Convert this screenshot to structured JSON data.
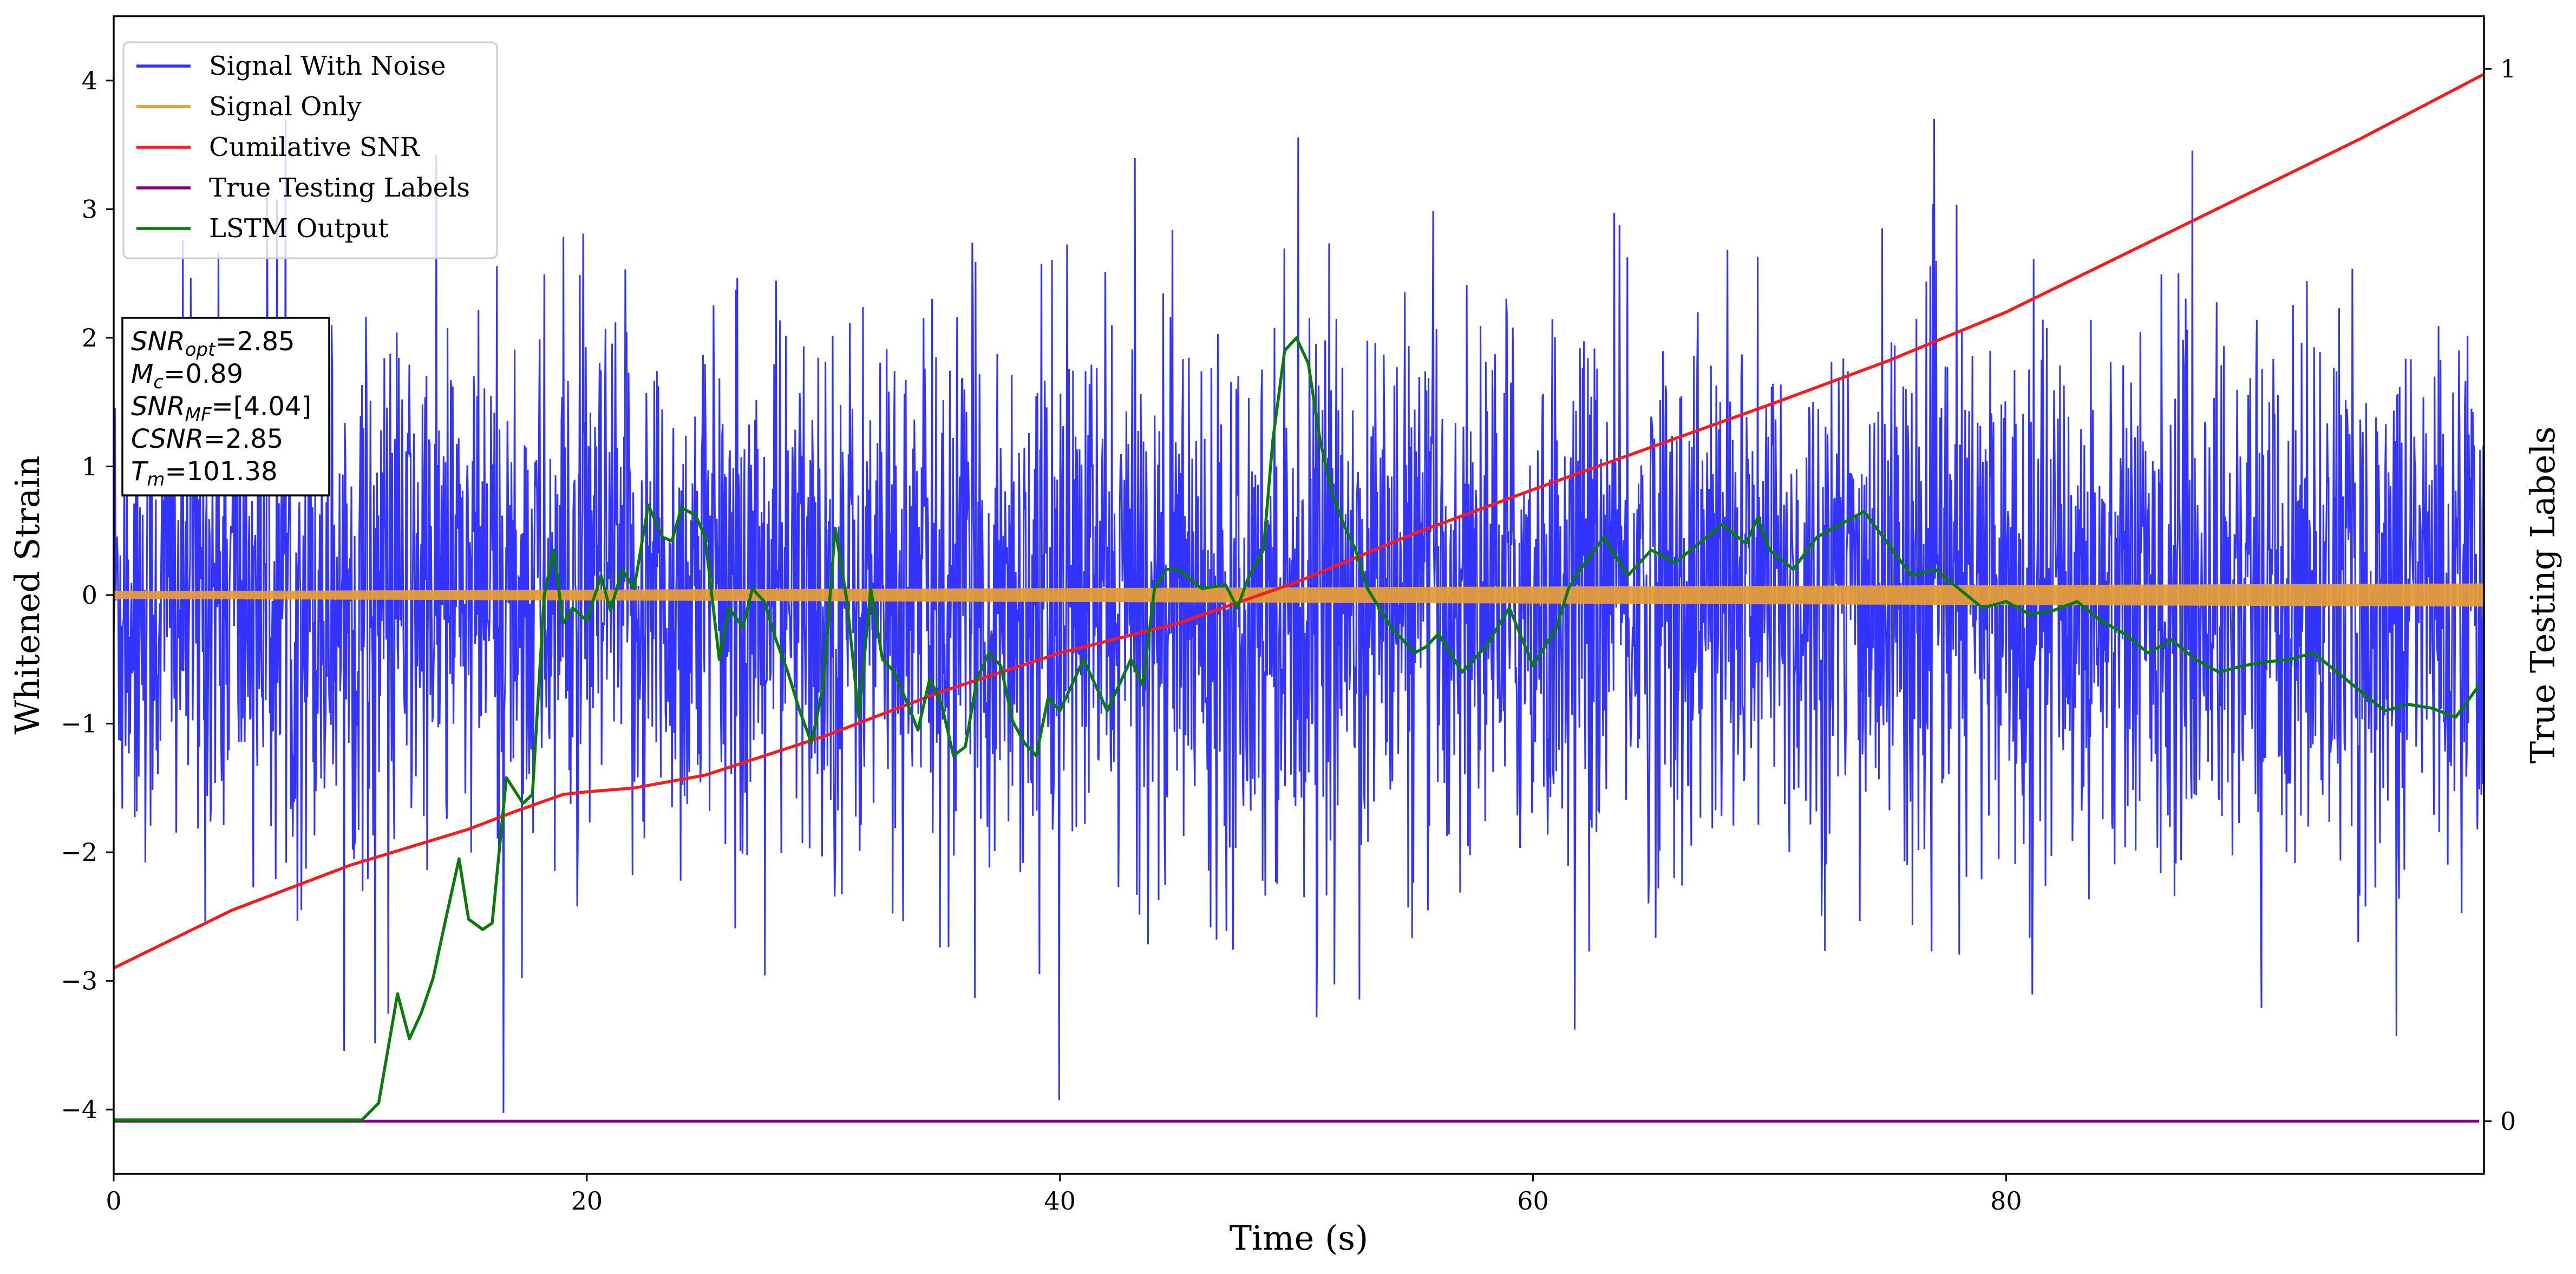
{
  "chart_data": {
    "type": "line",
    "xlabel": "Time (s)",
    "ylabel": "Whitened Strain",
    "y2label": "True Testing Labels",
    "xlim": [
      0,
      100.2
    ],
    "ylim": [
      -4.5,
      4.5
    ],
    "y2lim": [
      -0.05,
      1.05
    ],
    "xticks": [
      0,
      20,
      40,
      60,
      80
    ],
    "yticks": [
      -4,
      -3,
      -2,
      -1,
      0,
      1,
      2,
      3,
      4
    ],
    "y2ticks": [
      0,
      1
    ],
    "grid": false,
    "legend_position": "top-left",
    "info_box": {
      "lines": [
        {
          "main": "SNR",
          "sub": "opt",
          "value": "=2.85"
        },
        {
          "main": "M",
          "sub": "c",
          "value": "=0.89"
        },
        {
          "main": "SNR",
          "sub": "MF",
          "value": "=[4.04]"
        },
        {
          "main": "CSNR",
          "sub": "",
          "value": "=2.85"
        },
        {
          "main": "T",
          "sub": "m",
          "value": "=101.38"
        }
      ]
    },
    "series": [
      {
        "name": "Signal With Noise",
        "color": "#3333ff",
        "axis": "left",
        "kind": "noise",
        "envelope": [
          [
            0,
            3.3
          ],
          [
            100,
            3.3
          ]
        ],
        "typical_abs": 1.9,
        "x_range": [
          0,
          100.2
        ]
      },
      {
        "name": "Signal Only",
        "color": "#e59c39",
        "axis": "left",
        "kind": "band",
        "center": 0,
        "halfwidth_start": 0.03,
        "halfwidth_end": 0.09,
        "x_range": [
          0,
          100.2
        ]
      },
      {
        "name": "Cumilative SNR",
        "color": "#ff1a1a",
        "axis": "left",
        "x": [
          0,
          5,
          10,
          15,
          17,
          19,
          20,
          22,
          25,
          30,
          35,
          40,
          45,
          50,
          55,
          60,
          65,
          70,
          75,
          80,
          85,
          90,
          95,
          100.2
        ],
        "values": [
          -2.9,
          -2.45,
          -2.1,
          -1.82,
          -1.68,
          -1.55,
          -1.53,
          -1.5,
          -1.4,
          -1.1,
          -0.75,
          -0.45,
          -0.22,
          0.1,
          0.48,
          0.82,
          1.15,
          1.48,
          1.82,
          2.2,
          2.65,
          3.1,
          3.55,
          4.05
        ]
      },
      {
        "name": "True Testing Labels",
        "color": "#800080",
        "axis": "right",
        "x": [
          0,
          100
        ],
        "values": [
          0,
          0
        ]
      },
      {
        "name": "LSTM Output",
        "color": "#0a7a0a",
        "axis": "left",
        "x": [
          0,
          10.5,
          11.2,
          12.0,
          12.5,
          13.0,
          13.5,
          14.0,
          14.6,
          15.0,
          15.6,
          16.0,
          16.6,
          17.3,
          17.7,
          18.2,
          18.6,
          19.0,
          19.4,
          20.0,
          20.6,
          21.0,
          21.5,
          22.0,
          22.6,
          23.2,
          23.6,
          24.0,
          24.6,
          25.0,
          25.6,
          26.0,
          26.6,
          27.0,
          27.5,
          28.0,
          28.5,
          29.0,
          29.5,
          30.0,
          30.5,
          31.0,
          31.5,
          32.0,
          32.5,
          33.0,
          33.5,
          34.0,
          34.5,
          35.0,
          35.5,
          36.0,
          36.5,
          37.0,
          37.5,
          38.0,
          38.5,
          39.0,
          39.5,
          40.0,
          41.0,
          42.0,
          43.0,
          43.5,
          44.0,
          44.5,
          45.0,
          46.0,
          47.0,
          47.5,
          48.0,
          48.6,
          49.0,
          49.5,
          50.0,
          50.5,
          51.0,
          51.5,
          52.0,
          52.5,
          53.0,
          54.0,
          55.0,
          55.5,
          56.0,
          57.0,
          58.0,
          59.0,
          60.0,
          61.0,
          61.5,
          62.0,
          63.0,
          64.0,
          65.0,
          66.0,
          67.0,
          68.0,
          69.0,
          69.5,
          70.0,
          71.0,
          72.0,
          73.0,
          74.0,
          75.0,
          76.0,
          77.0,
          78.0,
          79.0,
          80.0,
          81.0,
          82.0,
          83.0,
          84.0,
          85.0,
          86.0,
          87.0,
          88.0,
          89.0,
          90.0,
          91.0,
          92.0,
          93.0,
          94.0,
          95.0,
          96.0,
          97.0,
          98.0,
          99.0,
          100.0
        ],
        "values": [
          -4.08,
          -4.08,
          -3.95,
          -3.1,
          -3.45,
          -3.25,
          -2.98,
          -2.55,
          -2.05,
          -2.52,
          -2.6,
          -2.55,
          -1.42,
          -1.62,
          -1.55,
          0.0,
          0.35,
          -0.22,
          -0.1,
          -0.2,
          0.15,
          -0.12,
          0.2,
          0.05,
          0.7,
          0.45,
          0.42,
          0.68,
          0.62,
          0.45,
          -0.5,
          -0.1,
          -0.25,
          0.05,
          -0.05,
          -0.35,
          -0.6,
          -0.9,
          -1.15,
          -0.7,
          0.52,
          -0.05,
          -0.95,
          0.05,
          -0.5,
          -0.6,
          -0.82,
          -1.05,
          -0.65,
          -0.85,
          -1.25,
          -1.18,
          -0.65,
          -0.45,
          -0.55,
          -0.98,
          -1.15,
          -1.25,
          -0.8,
          -0.9,
          -0.5,
          -0.9,
          -0.5,
          -0.7,
          0.05,
          0.2,
          0.2,
          0.05,
          0.08,
          -0.1,
          0.15,
          0.35,
          1.2,
          1.9,
          2.0,
          1.8,
          1.2,
          0.8,
          0.55,
          0.35,
          0.05,
          -0.25,
          -0.45,
          -0.4,
          -0.3,
          -0.6,
          -0.4,
          -0.1,
          -0.55,
          -0.25,
          0.05,
          0.2,
          0.45,
          0.15,
          0.35,
          0.25,
          0.4,
          0.55,
          0.4,
          0.6,
          0.35,
          0.2,
          0.45,
          0.55,
          0.65,
          0.4,
          0.15,
          0.2,
          0.05,
          -0.1,
          -0.05,
          -0.15,
          -0.12,
          -0.05,
          -0.2,
          -0.3,
          -0.45,
          -0.35,
          -0.5,
          -0.6,
          -0.55,
          -0.52,
          -0.5,
          -0.45,
          -0.6,
          -0.75,
          -0.9,
          -0.85,
          -0.88,
          -0.95,
          -0.7
        ]
      }
    ]
  }
}
